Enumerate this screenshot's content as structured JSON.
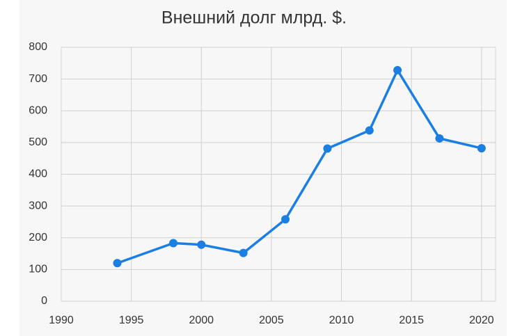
{
  "chart_data": {
    "type": "line",
    "title": "Внешний долг млрд. $.",
    "x": [
      1994,
      1998,
      2000,
      2003,
      2006,
      2009,
      2012,
      2014,
      2017,
      2020
    ],
    "series": [
      {
        "color": "#1a7ee3",
        "values": [
          120,
          183,
          178,
          152,
          258,
          481,
          538,
          728,
          513,
          482
        ]
      }
    ],
    "xlim": [
      1990,
      2021
    ],
    "xticks": [
      1990,
      1995,
      2000,
      2005,
      2010,
      2015,
      2020
    ],
    "ylim": [
      0,
      800
    ],
    "yticks": [
      0,
      100,
      200,
      300,
      400,
      500,
      600,
      700,
      800
    ],
    "grid": true
  }
}
